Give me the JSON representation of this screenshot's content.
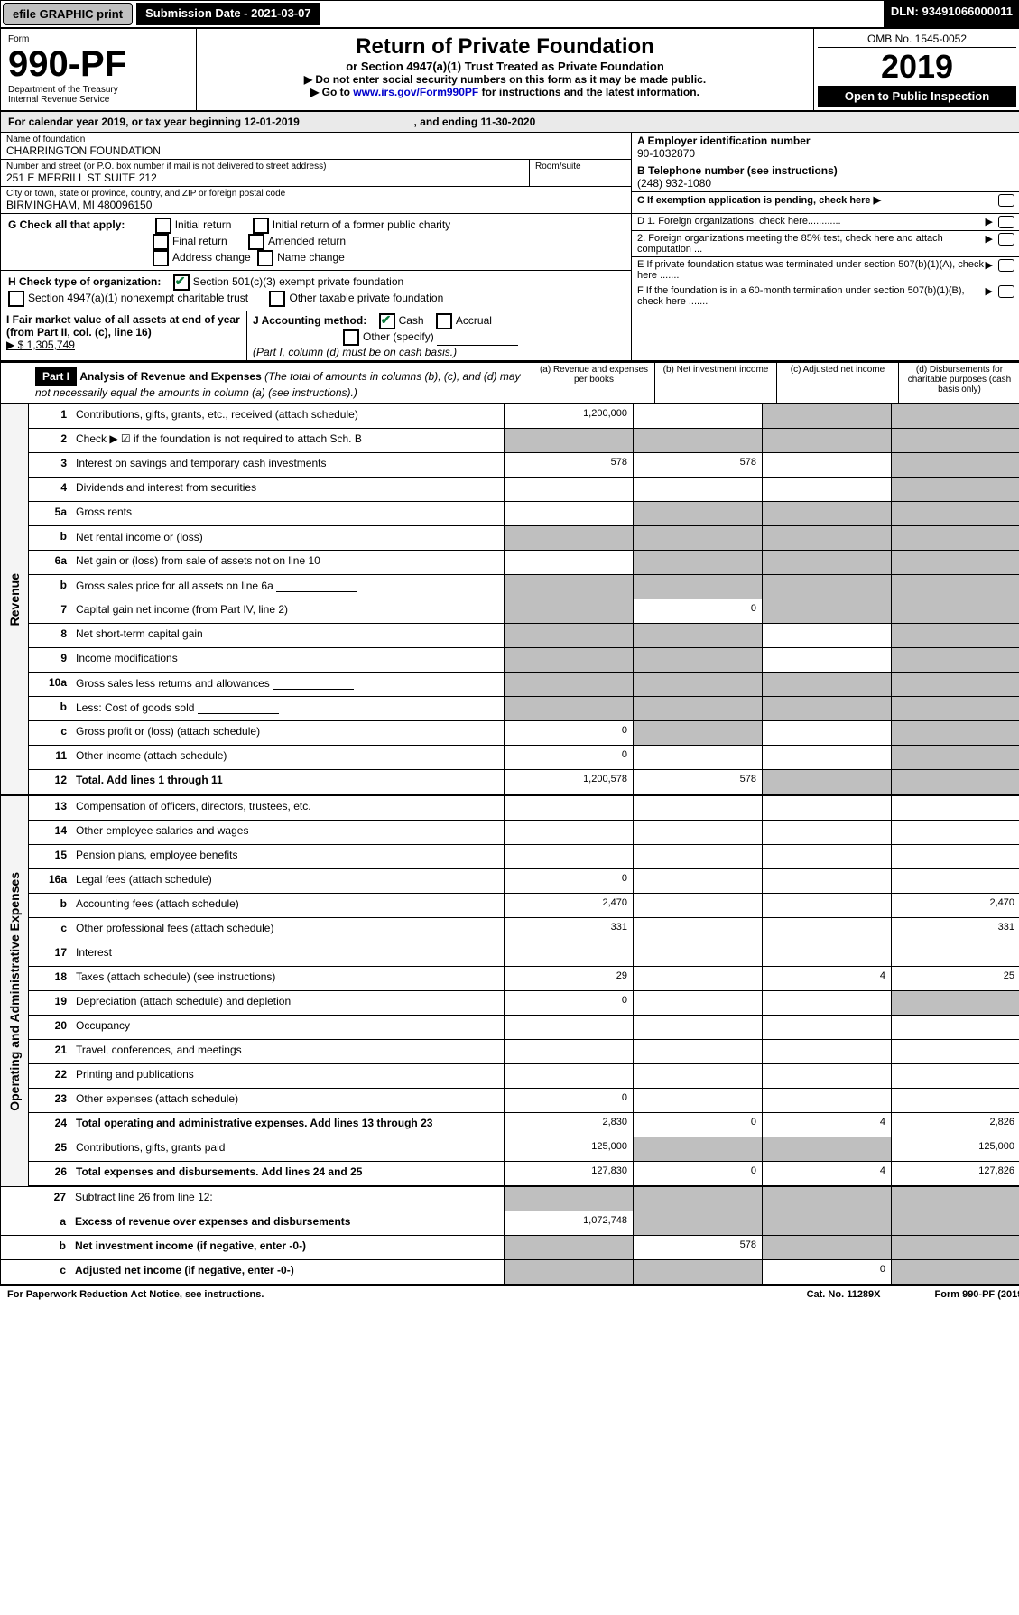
{
  "topbar": {
    "efile": "efile GRAPHIC print",
    "submission": "Submission Date - 2021-03-07",
    "dln": "DLN: 93491066000011"
  },
  "header": {
    "form_label": "Form",
    "form_no": "990-PF",
    "dept": "Department of the Treasury",
    "irs": "Internal Revenue Service",
    "title": "Return of Private Foundation",
    "subtitle": "or Section 4947(a)(1) Trust Treated as Private Foundation",
    "note1": "▶ Do not enter social security numbers on this form as it may be made public.",
    "note2_pre": "▶ Go to ",
    "note2_link": "www.irs.gov/Form990PF",
    "note2_post": " for instructions and the latest information.",
    "omb": "OMB No. 1545-0052",
    "year": "2019",
    "openpub": "Open to Public Inspection"
  },
  "calyear": {
    "text_pre": "For calendar year 2019, or tax year beginning ",
    "begin": "12-01-2019",
    "mid": " , and ending ",
    "end": "11-30-2020"
  },
  "entity": {
    "name_lbl": "Name of foundation",
    "name": "CHARRINGTON FOUNDATION",
    "addr_lbl": "Number and street (or P.O. box number if mail is not delivered to street address)",
    "room_lbl": "Room/suite",
    "addr": "251 E MERRILL ST SUITE 212",
    "city_lbl": "City or town, state or province, country, and ZIP or foreign postal code",
    "city": "BIRMINGHAM, MI 480096150",
    "ein_lbl": "A Employer identification number",
    "ein": "90-1032870",
    "phone_lbl": "B Telephone number (see instructions)",
    "phone": "(248) 932-1080",
    "c_lbl": "C If exemption application is pending, check here"
  },
  "g": {
    "label": "G Check all that apply:",
    "initial": "Initial return",
    "initial_pub": "Initial return of a former public charity",
    "final": "Final return",
    "amended": "Amended return",
    "addr_change": "Address change",
    "name_change": "Name change"
  },
  "h": {
    "label": "H Check type of organization:",
    "opt1": "Section 501(c)(3) exempt private foundation",
    "opt2": "Section 4947(a)(1) nonexempt charitable trust",
    "opt3": "Other taxable private foundation"
  },
  "i": {
    "label": "I Fair market value of all assets at end of year (from Part II, col. (c), line 16)",
    "val": "▶ $  1,305,749"
  },
  "j": {
    "label": "J Accounting method:",
    "cash": "Cash",
    "accrual": "Accrual",
    "other": "Other (specify)",
    "note": "(Part I, column (d) must be on cash basis.)"
  },
  "d": {
    "d1": "D 1. Foreign organizations, check here............",
    "d2": "2. Foreign organizations meeting the 85% test, check here and attach computation ...",
    "e": "E  If private foundation status was terminated under section 507(b)(1)(A), check here .......",
    "f": "F  If the foundation is in a 60-month termination under section 507(b)(1)(B), check here ......."
  },
  "part1": {
    "tag": "Part I",
    "title": "Analysis of Revenue and Expenses",
    "note": " (The total of amounts in columns (b), (c), and (d) may not necessarily equal the amounts in column (a) (see instructions).)",
    "col_a": "(a) Revenue and expenses per books",
    "col_b": "(b) Net investment income",
    "col_c": "(c) Adjusted net income",
    "col_d": "(d) Disbursements for charitable purposes (cash basis only)"
  },
  "sides": {
    "revenue": "Revenue",
    "opex": "Operating and Administrative Expenses"
  },
  "lines": {
    "l1": {
      "n": "1",
      "d": "Contributions, gifts, grants, etc., received (attach schedule)",
      "a": "1,200,000"
    },
    "l2": {
      "n": "2",
      "d": "Check ▶ ☑ if the foundation is not required to attach Sch. B"
    },
    "l3": {
      "n": "3",
      "d": "Interest on savings and temporary cash investments",
      "a": "578",
      "b": "578"
    },
    "l4": {
      "n": "4",
      "d": "Dividends and interest from securities"
    },
    "l5a": {
      "n": "5a",
      "d": "Gross rents"
    },
    "l5b": {
      "n": "b",
      "d": "Net rental income or (loss)"
    },
    "l6a": {
      "n": "6a",
      "d": "Net gain or (loss) from sale of assets not on line 10"
    },
    "l6b": {
      "n": "b",
      "d": "Gross sales price for all assets on line 6a"
    },
    "l7": {
      "n": "7",
      "d": "Capital gain net income (from Part IV, line 2)",
      "b": "0"
    },
    "l8": {
      "n": "8",
      "d": "Net short-term capital gain"
    },
    "l9": {
      "n": "9",
      "d": "Income modifications"
    },
    "l10a": {
      "n": "10a",
      "d": "Gross sales less returns and allowances"
    },
    "l10b": {
      "n": "b",
      "d": "Less: Cost of goods sold"
    },
    "l10c": {
      "n": "c",
      "d": "Gross profit or (loss) (attach schedule)",
      "a": "0"
    },
    "l11": {
      "n": "11",
      "d": "Other income (attach schedule)",
      "a": "0"
    },
    "l12": {
      "n": "12",
      "d": "Total. Add lines 1 through 11",
      "a": "1,200,578",
      "b": "578",
      "bold": true
    },
    "l13": {
      "n": "13",
      "d": "Compensation of officers, directors, trustees, etc."
    },
    "l14": {
      "n": "14",
      "d": "Other employee salaries and wages"
    },
    "l15": {
      "n": "15",
      "d": "Pension plans, employee benefits"
    },
    "l16a": {
      "n": "16a",
      "d": "Legal fees (attach schedule)",
      "a": "0"
    },
    "l16b": {
      "n": "b",
      "d": "Accounting fees (attach schedule)",
      "a": "2,470",
      "dd": "2,470"
    },
    "l16c": {
      "n": "c",
      "d": "Other professional fees (attach schedule)",
      "a": "331",
      "dd": "331"
    },
    "l17": {
      "n": "17",
      "d": "Interest"
    },
    "l18": {
      "n": "18",
      "d": "Taxes (attach schedule) (see instructions)",
      "a": "29",
      "c": "4",
      "dd": "25"
    },
    "l19": {
      "n": "19",
      "d": "Depreciation (attach schedule) and depletion",
      "a": "0"
    },
    "l20": {
      "n": "20",
      "d": "Occupancy"
    },
    "l21": {
      "n": "21",
      "d": "Travel, conferences, and meetings"
    },
    "l22": {
      "n": "22",
      "d": "Printing and publications"
    },
    "l23": {
      "n": "23",
      "d": "Other expenses (attach schedule)",
      "a": "0"
    },
    "l24": {
      "n": "24",
      "d": "Total operating and administrative expenses. Add lines 13 through 23",
      "a": "2,830",
      "b": "0",
      "c": "4",
      "dd": "2,826",
      "bold": true
    },
    "l25": {
      "n": "25",
      "d": "Contributions, gifts, grants paid",
      "a": "125,000",
      "dd": "125,000"
    },
    "l26": {
      "n": "26",
      "d": "Total expenses and disbursements. Add lines 24 and 25",
      "a": "127,830",
      "b": "0",
      "c": "4",
      "dd": "127,826",
      "bold": true
    },
    "l27": {
      "n": "27",
      "d": "Subtract line 26 from line 12:"
    },
    "l27a": {
      "n": "a",
      "d": "Excess of revenue over expenses and disbursements",
      "a": "1,072,748",
      "bold": true
    },
    "l27b": {
      "n": "b",
      "d": "Net investment income (if negative, enter -0-)",
      "b": "578",
      "bold": true
    },
    "l27c": {
      "n": "c",
      "d": "Adjusted net income (if negative, enter -0-)",
      "c": "0",
      "bold": true
    }
  },
  "footer": {
    "pra": "For Paperwork Reduction Act Notice, see instructions.",
    "cat": "Cat. No. 11289X",
    "form": "Form 990-PF (2019)"
  },
  "style": {
    "gray_cells": "#bfbfbf",
    "link_color": "#0000cc",
    "check_color": "#0a7a3a"
  }
}
